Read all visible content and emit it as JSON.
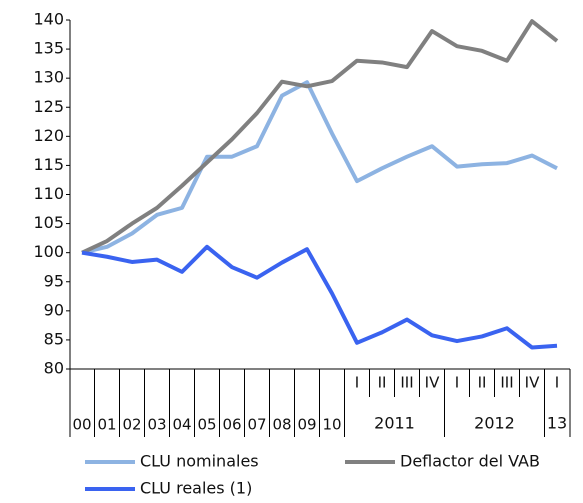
{
  "chart_data": {
    "type": "line",
    "categories": [
      "00",
      "01",
      "02",
      "03",
      "04",
      "05",
      "06",
      "07",
      "08",
      "09",
      "10",
      "I",
      "II",
      "III",
      "IV",
      "I",
      "II",
      "III",
      "IV",
      "I"
    ],
    "category_groups": [
      null,
      null,
      null,
      null,
      null,
      null,
      null,
      null,
      null,
      null,
      null,
      "2011",
      "2011",
      "2011",
      "2011",
      "2012",
      "2012",
      "2012",
      "2012",
      "13"
    ],
    "series": [
      {
        "name": "CLU nominales",
        "color": "#8db3e2",
        "values": [
          100,
          101,
          103.3,
          106.5,
          107.7,
          116.5,
          116.5,
          118.3,
          127,
          129.3,
          120.5,
          112.3,
          114.5,
          116.5,
          118.3,
          114.8,
          115.2,
          115.4,
          116.7,
          114.5
        ]
      },
      {
        "name": "Deflactor del VAB",
        "color": "#808080",
        "values": [
          100,
          102,
          105,
          107.7,
          111.5,
          115.5,
          119.5,
          124,
          129.4,
          128.6,
          129.5,
          133,
          132.7,
          131.9,
          138.1,
          135.5,
          134.7,
          133,
          139.8,
          136.4
        ]
      },
      {
        "name": "CLU reales (1)",
        "color": "#3a63f0",
        "values": [
          100,
          99.3,
          98.4,
          98.8,
          96.7,
          101,
          97.5,
          95.7,
          98.3,
          100.6,
          93,
          84.5,
          86.3,
          88.5,
          85.8,
          84.8,
          85.6,
          87,
          83.7,
          84
        ]
      }
    ],
    "ylim": [
      80,
      140
    ],
    "yticks": [
      80,
      85,
      90,
      95,
      100,
      105,
      110,
      115,
      120,
      125,
      130,
      135,
      140
    ]
  }
}
